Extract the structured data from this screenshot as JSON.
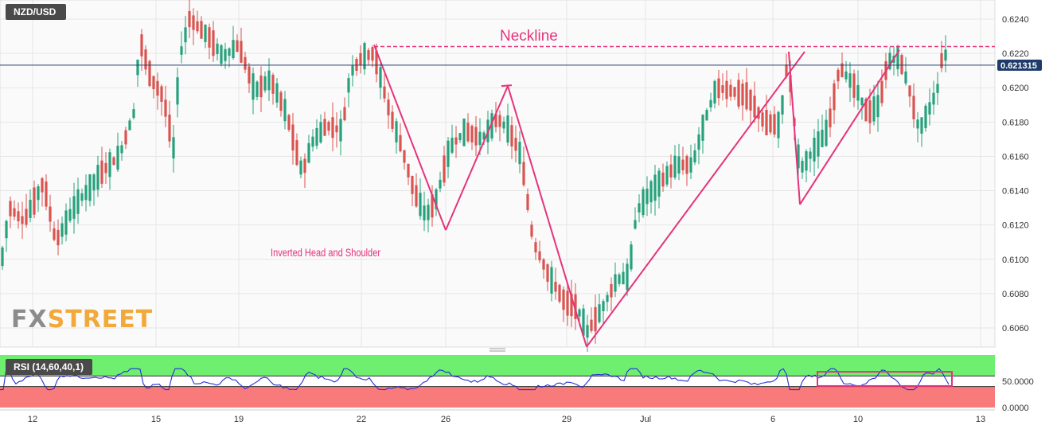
{
  "symbol": "NZD/USD",
  "indicator_label": "RSI (14,60,40,1)",
  "logo": {
    "part1": "FX",
    "part2": "STREET"
  },
  "annotations": {
    "neckline": "Neckline",
    "pattern": "Inverted Head and Shoulder"
  },
  "colors": {
    "bull": "#26a17b",
    "bear": "#d9534f",
    "pattern": "#e5337a",
    "price_line": "#1f3b6b",
    "rsi_line": "#2430d8",
    "rsi_upper_zone": "#6fef6f",
    "rsi_lower_zone": "#f87a7a",
    "grid": "#e6e6e6"
  },
  "chart_data": [
    {
      "type": "candlestick",
      "ylim": [
        0.605,
        0.6252
      ],
      "y_ticks": [
        "0.6240",
        "0.6220",
        "0.6200",
        "0.6180",
        "0.6160",
        "0.6140",
        "0.6120",
        "0.6100",
        "0.6080",
        "0.6060"
      ],
      "x_ticks": [
        "12",
        "15",
        "19",
        "22",
        "26",
        "29",
        "Jul",
        "6",
        "10",
        "13"
      ],
      "current_price": "0.621315",
      "neckline_level": 0.6224,
      "grid": true,
      "pattern_points": [
        {
          "date": "22",
          "value": 0.6225
        },
        {
          "date": "26",
          "value": 0.6117
        },
        {
          "date": "28",
          "value": 0.6201
        },
        {
          "date": "30",
          "value": 0.6049
        },
        {
          "date": "6",
          "value": 0.6221
        },
        {
          "date": "7",
          "value": 0.6132
        },
        {
          "date": "11",
          "value": 0.6222
        }
      ]
    },
    {
      "type": "line",
      "name": "RSI (14,60,40,1)",
      "ylim": [
        0,
        100
      ],
      "y_ticks": [
        "50.0000",
        "0.0000"
      ],
      "upper_level": 60,
      "lower_level": 40,
      "highlight_window": [
        "9",
        "13"
      ]
    }
  ]
}
